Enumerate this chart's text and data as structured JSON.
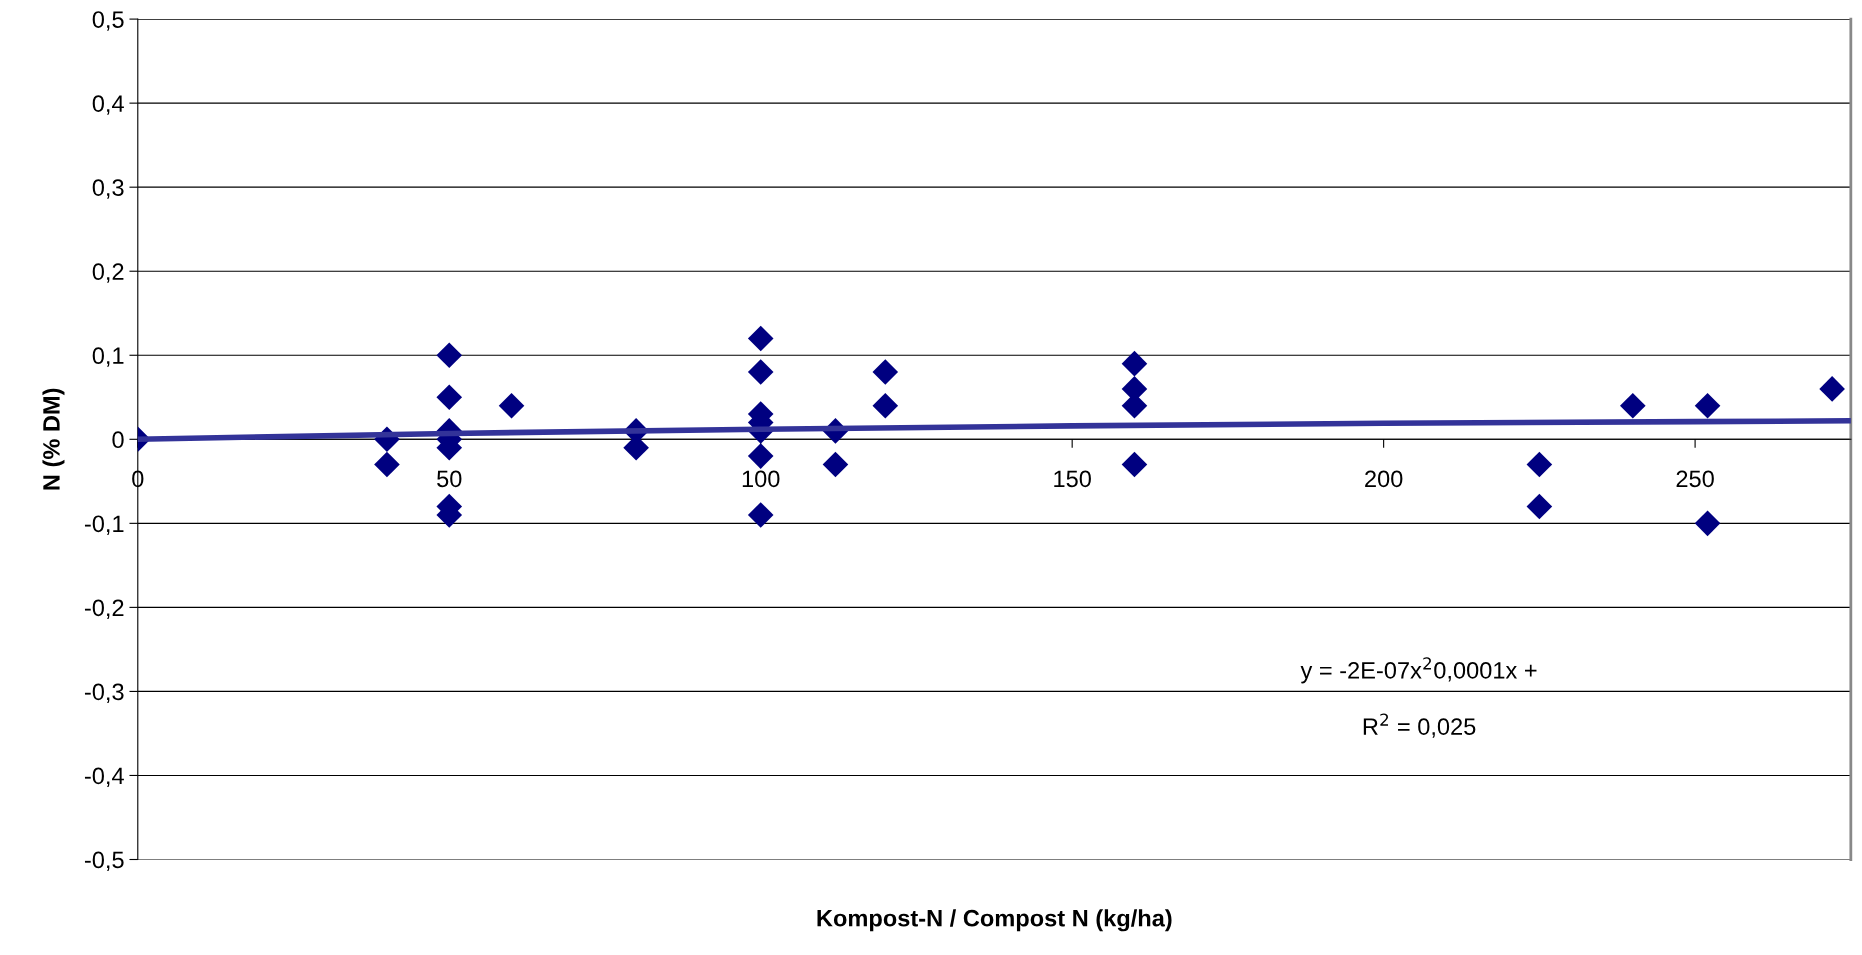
{
  "chart_data": {
    "type": "scatter",
    "xlabel": "Kompost-N / Compost N (kg/ha)",
    "ylabel": "N (% DM)",
    "xlim": [
      0,
      275
    ],
    "xticks": [
      0,
      50,
      100,
      150,
      200,
      250
    ],
    "ylim": [
      -0.5,
      0.5
    ],
    "yticks": [
      {
        "value": -0.5,
        "label": "-0,5"
      },
      {
        "value": -0.4,
        "label": "-0,4"
      },
      {
        "value": -0.3,
        "label": "-0,3"
      },
      {
        "value": -0.2,
        "label": "-0,2"
      },
      {
        "value": -0.1,
        "label": "-0,1"
      },
      {
        "value": 0,
        "label": "0"
      },
      {
        "value": 0.1,
        "label": "0,1"
      },
      {
        "value": 0.2,
        "label": "0,2"
      },
      {
        "value": 0.3,
        "label": "0,3"
      },
      {
        "value": 0.4,
        "label": "0,4"
      },
      {
        "value": 0.5,
        "label": "0,5"
      }
    ],
    "grid": "y",
    "marker": "diamond",
    "series": [
      {
        "color": "#000080",
        "x": [
          0,
          40,
          40,
          50,
          50,
          50,
          50,
          50,
          50,
          50,
          60,
          80,
          80,
          100,
          100,
          100,
          100,
          100,
          100,
          100,
          112,
          112,
          120,
          120,
          160,
          160,
          160,
          160,
          225,
          225,
          240,
          252,
          252,
          272
        ],
        "values": [
          0,
          0,
          -0.03,
          0.1,
          0.05,
          0.01,
          0,
          -0.01,
          -0.08,
          -0.09,
          0.04,
          0.01,
          -0.01,
          0.12,
          0.08,
          0.03,
          0.02,
          0.01,
          -0.02,
          -0.09,
          0.01,
          -0.03,
          0.08,
          0.04,
          0.09,
          0.06,
          0.04,
          -0.03,
          -0.03,
          -0.08,
          0.04,
          0.04,
          -0.1,
          0.06
        ]
      },
      {
        "type": "line",
        "color": "#333399",
        "marker": "none",
        "x": [
          0,
          50,
          100,
          150,
          200,
          250,
          275
        ],
        "values": [
          0,
          0.007,
          0.012,
          0.016,
          0.019,
          0.021,
          0.022
        ]
      }
    ],
    "annotations": [
      "y = -2E-07x$^{2}$0,0001x +",
      "R$^{2}$ = 0,025"
    ]
  }
}
